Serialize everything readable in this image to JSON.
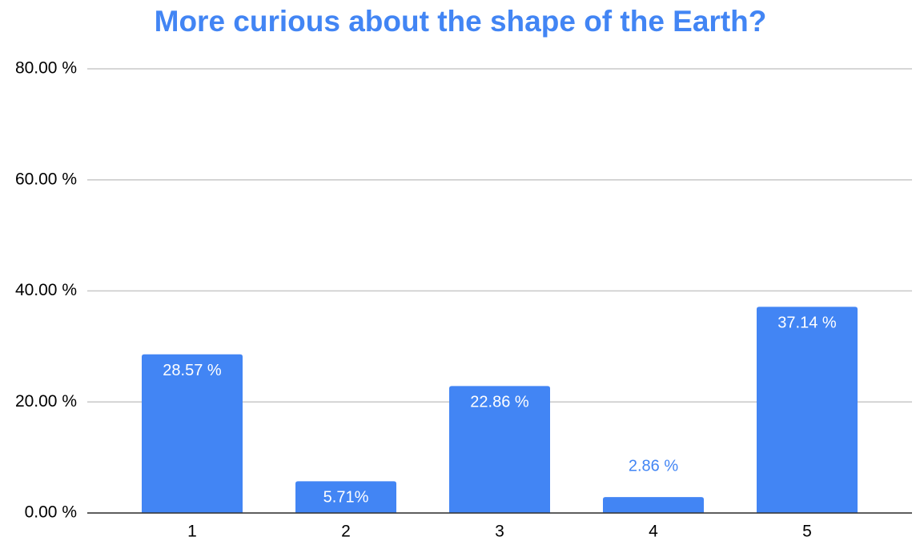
{
  "chart_data": {
    "type": "bar",
    "title": "More curious about the shape of the Earth?",
    "categories": [
      "1",
      "2",
      "3",
      "4",
      "5"
    ],
    "values": [
      28.57,
      5.71,
      22.86,
      2.86,
      37.14
    ],
    "value_labels": [
      "28.57 %",
      "5.71%",
      "22.86 %",
      "2.86 %",
      "37.14 %"
    ],
    "color": "#4285f4",
    "ylim": [
      0,
      80
    ],
    "yticks": [
      {
        "value": 0,
        "label": "0.00 %"
      },
      {
        "value": 20,
        "label": "20.00 %"
      },
      {
        "value": 40,
        "label": "40.00 %"
      },
      {
        "value": 60,
        "label": "60.00 %"
      },
      {
        "value": 80,
        "label": "80.00 %"
      }
    ],
    "grid": true
  }
}
